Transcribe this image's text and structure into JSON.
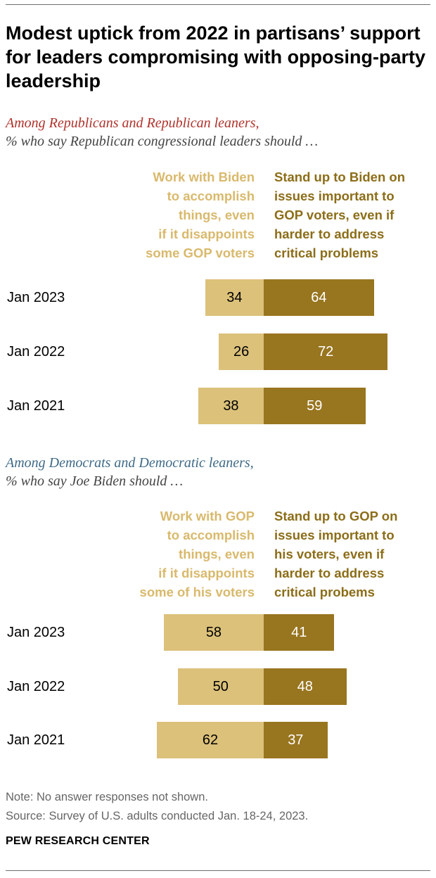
{
  "title": "Modest uptick from 2022 in partisans’ support for leaders compromising with opposing-party leadership",
  "colors": {
    "light_bar": "#dcc17a",
    "dark_bar": "#98751f",
    "light_header": "#d9b96c",
    "dark_header": "#8c6d18",
    "rep_group_label": "#b0322b",
    "dem_group_label": "#3f6a86"
  },
  "note": "Note: No answer responses not shown.",
  "source": "Source: Survey of U.S. adults conducted Jan. 18-24, 2023.",
  "brand": "PEW RESEARCH CENTER",
  "chart_data": [
    {
      "type": "bar",
      "orientation": "horizontal-diverging",
      "group_label": "Among Republicans and Republican leaners,",
      "question": "% who say Republican congressional leaders should …",
      "categories": [
        "Jan 2023",
        "Jan 2022",
        "Jan 2021"
      ],
      "series": [
        {
          "name": "Work with Biden\nto accomplish\nthings, even\nif it disappoints\nsome GOP voters",
          "values": [
            34,
            26,
            38
          ],
          "color": "#dcc17a"
        },
        {
          "name": "Stand up to Biden on\nissues important to\nGOP voters, even if\nharder to address\ncritical problems",
          "values": [
            64,
            72,
            59
          ],
          "color": "#98751f"
        }
      ]
    },
    {
      "type": "bar",
      "orientation": "horizontal-diverging",
      "group_label": "Among Democrats and Democratic leaners,",
      "question": "% who say Joe Biden should …",
      "categories": [
        "Jan 2023",
        "Jan 2022",
        "Jan 2021"
      ],
      "series": [
        {
          "name": "Work with GOP\nto accomplish\nthings, even\nif it disappoints\nsome of his voters",
          "values": [
            58,
            50,
            62
          ],
          "color": "#dcc17a"
        },
        {
          "name": "Stand up to GOP on\nissues important to\nhis voters, even if\nharder to address\ncritical probems",
          "values": [
            41,
            48,
            37
          ],
          "color": "#98751f"
        }
      ]
    }
  ]
}
